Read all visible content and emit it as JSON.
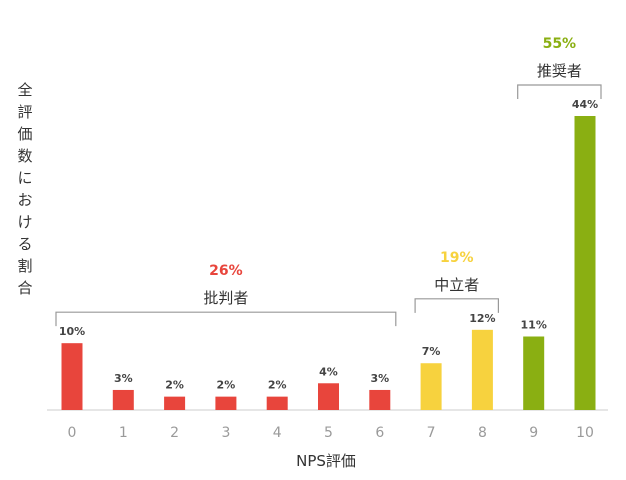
{
  "chart_data": {
    "type": "bar",
    "xlabel": "NPS評価",
    "ylabel": "全評価数における割合",
    "categories": [
      "0",
      "1",
      "2",
      "3",
      "4",
      "5",
      "6",
      "7",
      "8",
      "9",
      "10"
    ],
    "values": [
      10,
      3,
      2,
      2,
      2,
      4,
      3,
      7,
      12,
      11,
      44
    ],
    "value_labels": [
      "10%",
      "3%",
      "2%",
      "2%",
      "2%",
      "4%",
      "3%",
      "7%",
      "12%",
      "11%",
      "44%"
    ],
    "bar_colors": [
      "#e8453c",
      "#e8453c",
      "#e8453c",
      "#e8453c",
      "#e8453c",
      "#e8453c",
      "#e8453c",
      "#f7d23e",
      "#f7d23e",
      "#8aaf12",
      "#8aaf12"
    ],
    "ylim": [
      0,
      44
    ],
    "grid": false,
    "groups": [
      {
        "name": "批判者",
        "percent": "26%",
        "color": "#e8453c",
        "from": 0,
        "to": 6
      },
      {
        "name": "中立者",
        "percent": "19%",
        "color": "#f7d23e",
        "from": 7,
        "to": 8
      },
      {
        "name": "推奨者",
        "percent": "55%",
        "color": "#8aaf12",
        "from": 9,
        "to": 10
      }
    ]
  }
}
